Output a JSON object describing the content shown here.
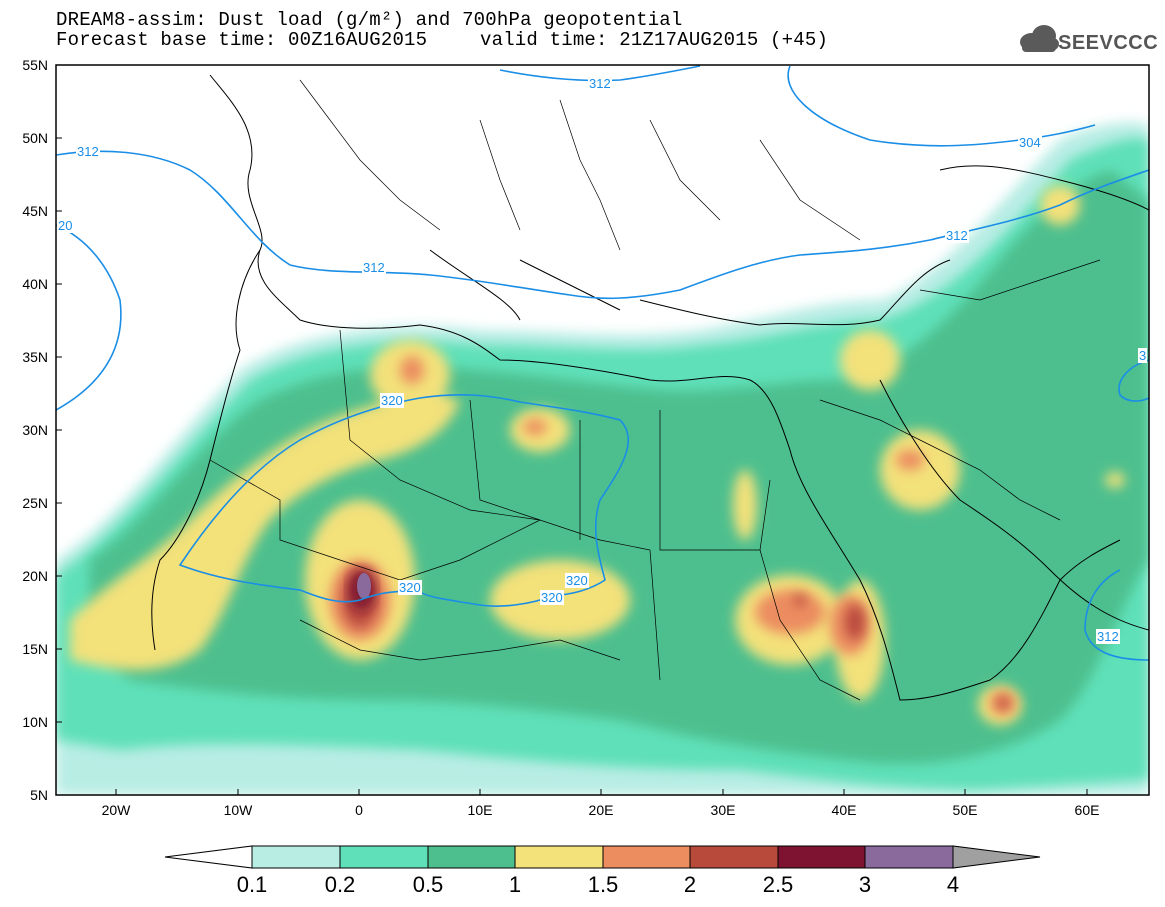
{
  "header": {
    "line1": "DREAM8-assim: Dust load (g/m²) and 700hPa geopotential",
    "line2": "Forecast base time: 00Z16AUG2015",
    "line3": "valid time: 21Z17AUG2015 (+45)",
    "logo_text": "SEEVCCC"
  },
  "map": {
    "lat_labels": [
      "55N",
      "50N",
      "45N",
      "40N",
      "35N",
      "30N",
      "25N",
      "20N",
      "15N",
      "10N",
      "5N"
    ],
    "lon_labels": [
      "20W",
      "10W",
      "0",
      "10E",
      "20E",
      "30E",
      "40E",
      "50E",
      "60E"
    ],
    "contour_labels": [
      "312",
      "312",
      "304",
      "312",
      "312",
      "320",
      "320",
      "320",
      "320",
      "312"
    ],
    "partial_labels": [
      "20",
      "3"
    ]
  },
  "colorbar": {
    "labels": [
      "0.1",
      "0.2",
      "0.5",
      "1",
      "1.5",
      "2",
      "2.5",
      "3",
      "4"
    ],
    "colors": [
      "#ffffff",
      "#b8ede4",
      "#5fe0b8",
      "#4dbf8e",
      "#f3e17a",
      "#ec8d60",
      "#b84a3c",
      "#7d1330",
      "#8a6a9c",
      "#a0a0a0"
    ]
  }
}
